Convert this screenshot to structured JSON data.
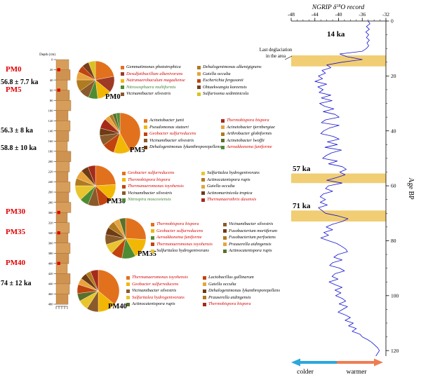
{
  "colors": {
    "sample_label_red": "#E30000",
    "taxon_red": "#D40000",
    "taxon_green": "#3A7D2C",
    "curve_blue": "#1414D2",
    "band_yellow": "#EFC55C",
    "colder_blue": "#2BA7DC",
    "warmer_orange": "#EE7E52",
    "column_fill": "#D79E5B",
    "column_fill_alt": "#CE9350",
    "column_stroke": "#8A5A28"
  },
  "strat_column": {
    "axis_label": "Depth (cm)",
    "depth_min": 0,
    "depth_max": 480,
    "tick_step": 20,
    "samples": [
      {
        "label": "PM0",
        "depth_cm": 20
      },
      {
        "label": "PM5",
        "depth_cm": 60
      },
      {
        "label": "PM30",
        "depth_cm": 300
      },
      {
        "label": "PM35",
        "depth_cm": 340
      },
      {
        "label": "PM40",
        "depth_cm": 400
      }
    ],
    "ages": [
      {
        "label": "56.8 ± 7.7 ka",
        "depth_cm": 45
      },
      {
        "label": "56.3 ± 8 ka",
        "depth_cm": 140
      },
      {
        "label": "58.8 ± 10 ka",
        "depth_cm": 175
      },
      {
        "label": "74 ± 12 ka",
        "depth_cm": 440
      }
    ]
  },
  "ngrip": {
    "title_pre": "NGRIP δ",
    "title_sup": "18",
    "title_post": "O record",
    "y_axis_label": "Age BP",
    "annotation_line1": "Last deglaciation",
    "annotation_line2": "in the area",
    "colder_label": "colder",
    "warmer_label": "warmer",
    "bands": [
      {
        "label": "14 ka",
        "age_from": 12.5,
        "age_to": 16.5
      },
      {
        "label": "57 ka",
        "age_from": 55.5,
        "age_to": 59
      },
      {
        "label": "71 ka",
        "age_from": 69,
        "age_to": 73
      }
    ]
  },
  "chart_data": [
    {
      "type": "pie",
      "name": "PM0",
      "slices": [
        {
          "label": "Gemmatimonas phototrophica",
          "value": 22,
          "color": "#E2711D",
          "text_color": "#000000"
        },
        {
          "label": "Desulfatibacillum alkenivorans",
          "value": 14,
          "color": "#9E3A26",
          "text_color": "#D40000"
        },
        {
          "label": "Natranaerobaculum magadiense",
          "value": 12,
          "color": "#F2B705",
          "text_color": "#D40000"
        },
        {
          "label": "Nitrososphaera multiformis",
          "value": 8,
          "color": "#4E8C33",
          "text_color": "#3A7D2C"
        },
        {
          "label": "Vicinamibacter silvestris",
          "value": 9,
          "color": "#8A5A2A",
          "text_color": "#000000"
        },
        {
          "label": "Dehalogenimonas alkenigignens",
          "value": 10,
          "color": "#B07A1E",
          "text_color": "#000000"
        },
        {
          "label": "Gaiella occulta",
          "value": 7,
          "color": "#E8A33D",
          "text_color": "#000000"
        },
        {
          "label": "Escherichia fergusonii",
          "value": 6,
          "color": "#C1440E",
          "text_color": "#000000"
        },
        {
          "label": "Ohtaekwangia koreensis",
          "value": 6,
          "color": "#7A3E1D",
          "text_color": "#000000"
        },
        {
          "label": "Sulfurisoma sediminicola",
          "value": 6,
          "color": "#D9C21E",
          "text_color": "#000000"
        }
      ]
    },
    {
      "type": "pie",
      "name": "PM5",
      "slices": [
        {
          "label": "Acinetobacter junii",
          "value": 42,
          "color": "#E2711D",
          "text_color": "#000000"
        },
        {
          "label": "Pseudomonas stutzeri",
          "value": 13,
          "color": "#F2B705",
          "text_color": "#000000"
        },
        {
          "label": "Geobacter sulfurreducens",
          "value": 10,
          "color": "#C1440E",
          "text_color": "#D40000"
        },
        {
          "label": "Vicinamibacter silvestris",
          "value": 8,
          "color": "#8A5A2A",
          "text_color": "#000000"
        },
        {
          "label": "Dehalogenimonas lykanthroporepellens",
          "value": 6,
          "color": "#6E3B14",
          "text_color": "#000000"
        },
        {
          "label": "Thermobispora bispora",
          "value": 8,
          "color": "#A52A1A",
          "text_color": "#D40000"
        },
        {
          "label": "Acinetobacter tjernbergiae",
          "value": 4,
          "color": "#E8A33D",
          "text_color": "#000000"
        },
        {
          "label": "Arthrobacter globiformis",
          "value": 3,
          "color": "#B07A1E",
          "text_color": "#000000"
        },
        {
          "label": "Acinetobacter lwoffii",
          "value": 3,
          "color": "#59702C",
          "text_color": "#000000"
        },
        {
          "label": "Aeroakkonema funiforme",
          "value": 3,
          "color": "#4E8C33",
          "text_color": "#D40000"
        }
      ]
    },
    {
      "type": "pie",
      "name": "PM30",
      "slices": [
        {
          "label": "Geobacter sulfurreducens",
          "value": 24,
          "color": "#E2711D",
          "text_color": "#D40000"
        },
        {
          "label": "Thermobispora bispora",
          "value": 13,
          "color": "#F2B705",
          "text_color": "#D40000"
        },
        {
          "label": "Thermanaeromonas toyohensis",
          "value": 10,
          "color": "#C1440E",
          "text_color": "#D40000"
        },
        {
          "label": "Vicinamibacter silvestris",
          "value": 9,
          "color": "#8A5A2A",
          "text_color": "#000000"
        },
        {
          "label": "Nitrospira moscoviensis",
          "value": 7,
          "color": "#4E8C33",
          "text_color": "#3A7D2C"
        },
        {
          "label": "Sulfuritalea hydrogenivorans",
          "value": 12,
          "color": "#E8C52E",
          "text_color": "#000000"
        },
        {
          "label": "Actinocatenispora rupis",
          "value": 6,
          "color": "#B07A1E",
          "text_color": "#000000"
        },
        {
          "label": "Gaiella occulta",
          "value": 7,
          "color": "#E8A33D",
          "text_color": "#000000"
        },
        {
          "label": "Actinomarinicola tropica",
          "value": 6,
          "color": "#6E3B14",
          "text_color": "#000000"
        },
        {
          "label": "Thermanaerothrix daxensis",
          "value": 6,
          "color": "#A52A1A",
          "text_color": "#D40000"
        }
      ]
    },
    {
      "type": "pie",
      "name": "PM35",
      "slices": [
        {
          "label": "Thermobispora bispora",
          "value": 26,
          "color": "#E2711D",
          "text_color": "#D40000"
        },
        {
          "label": "Geobacter sulfurreducens",
          "value": 16,
          "color": "#F2B705",
          "text_color": "#D40000"
        },
        {
          "label": "Aeroakkonema funiforme",
          "value": 11,
          "color": "#4E8C33",
          "text_color": "#D40000"
        },
        {
          "label": "Thermanaeromonas toyohensis",
          "value": 9,
          "color": "#C1440E",
          "text_color": "#D40000"
        },
        {
          "label": "Sulfuritalea hydrogenivorans",
          "value": 8,
          "color": "#E8C52E",
          "text_color": "#000000"
        },
        {
          "label": "Vicinamibacter silvestris",
          "value": 8,
          "color": "#8A5A2A",
          "text_color": "#000000"
        },
        {
          "label": "Fusobacterium mortiferum",
          "value": 6,
          "color": "#6E3B14",
          "text_color": "#000000"
        },
        {
          "label": "Fusobacterium perfoetens",
          "value": 6,
          "color": "#B07A1E",
          "text_color": "#000000"
        },
        {
          "label": "Prauserella aidingensis",
          "value": 5,
          "color": "#E8A33D",
          "text_color": "#000000"
        },
        {
          "label": "Actinocatenispora rupis",
          "value": 5,
          "color": "#59702C",
          "text_color": "#000000"
        }
      ]
    },
    {
      "type": "pie",
      "name": "PM40",
      "slices": [
        {
          "label": "Thermanaeromonas toyohensis",
          "value": 36,
          "color": "#E2711D",
          "text_color": "#D40000"
        },
        {
          "label": "Geobacter sulfurreducens",
          "value": 14,
          "color": "#F2B705",
          "text_color": "#D40000"
        },
        {
          "label": "Vicinamibacter silvestris",
          "value": 9,
          "color": "#8A5A2A",
          "text_color": "#000000"
        },
        {
          "label": "Sulfuritalea hydrogenivorans",
          "value": 8,
          "color": "#E8C52E",
          "text_color": "#D40000"
        },
        {
          "label": "Actinocatenispora rupis",
          "value": 6,
          "color": "#59702C",
          "text_color": "#000000"
        },
        {
          "label": "Lactobacillus gallinarum",
          "value": 7,
          "color": "#C1440E",
          "text_color": "#000000"
        },
        {
          "label": "Gaiella occulta",
          "value": 5,
          "color": "#E8A33D",
          "text_color": "#000000"
        },
        {
          "label": "Dehalogenimonas lykanthroporepellens",
          "value": 5,
          "color": "#6E3B14",
          "text_color": "#000000"
        },
        {
          "label": "Prauserella aidingensis",
          "value": 4,
          "color": "#B07A1E",
          "text_color": "#000000"
        },
        {
          "label": "Thermobispora bispora",
          "value": 6,
          "color": "#A52A1A",
          "text_color": "#D40000"
        }
      ]
    },
    {
      "type": "line",
      "name": "NGRIP d18O record",
      "x_ticks": [
        -48,
        -44,
        -40,
        -36,
        -32
      ],
      "xlim": [
        -48,
        -32
      ],
      "y_ticks": [
        0,
        20,
        40,
        60,
        80,
        100,
        120
      ],
      "ylim": [
        0,
        122
      ],
      "y_label": "Age BP",
      "axis_positions": {
        "x_axis": "top",
        "y_axis": "right"
      },
      "age_start_ka": 0,
      "age_step_ka": 1,
      "series": [
        {
          "name": "NGRIP δ18O",
          "color": "#1414D2",
          "d18O": [
            -35.0,
            -34.7,
            -35.3,
            -34.8,
            -35.4,
            -34.9,
            -35.3,
            -34.8,
            -35.2,
            -34.9,
            -35.3,
            -36.0,
            -39.8,
            -38.6,
            -36.0,
            -39.5,
            -42.0,
            -41.3,
            -42.8,
            -42.2,
            -43.4,
            -42.7,
            -44.0,
            -42.0,
            -43.5,
            -42.6,
            -43.3,
            -41.3,
            -42.9,
            -41.1,
            -43.2,
            -42.4,
            -40.8,
            -42.6,
            -40.6,
            -39.9,
            -42.2,
            -42.9,
            -39.9,
            -41.6,
            -42.5,
            -43.0,
            -40.9,
            -39.9,
            -41.9,
            -40.2,
            -42.3,
            -39.5,
            -41.2,
            -42.1,
            -42.7,
            -40.2,
            -41.7,
            -39.4,
            -38.7,
            -39.8,
            -38.9,
            -40.3,
            -42.0,
            -39.4,
            -41.7,
            -42.2,
            -41.0,
            -42.6,
            -43.1,
            -42.2,
            -43.1,
            -41.9,
            -43.4,
            -42.8,
            -42.2,
            -40.0,
            -38.4,
            -39.4,
            -41.0,
            -42.1,
            -41.0,
            -42.5,
            -41.7,
            -43.0,
            -41.7,
            -40.3,
            -39.5,
            -38.8,
            -38.5,
            -40.1,
            -40.8,
            -39.4,
            -41.0,
            -41.5,
            -39.8,
            -39.0,
            -40.6,
            -41.1,
            -40.1,
            -41.6,
            -40.6,
            -39.4,
            -40.6,
            -39.6,
            -40.5,
            -39.4,
            -38.8,
            -39.9,
            -38.5,
            -39.3,
            -40.1,
            -38.9,
            -38.0,
            -38.9,
            -37.5,
            -38.3,
            -37.0,
            -37.7,
            -36.4,
            -36.0,
            -35.1,
            -34.4,
            -33.9,
            -33.4,
            -33.1,
            -33.4,
            -33.7
          ]
        }
      ]
    }
  ]
}
